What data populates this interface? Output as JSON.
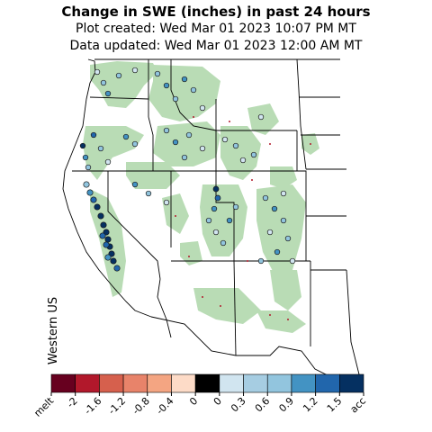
{
  "header": {
    "title": "Change in SWE (inches) in past 24 hours",
    "created": "Plot created: Wed Mar 01 2023 10:07 PM MT",
    "updated": "Data updated: Wed Mar 01 2023 12:00 AM MT"
  },
  "region_label": "Western US",
  "colorbar": {
    "colors": [
      "#67001f",
      "#b2182b",
      "#d6604d",
      "#e8836a",
      "#f4a582",
      "#fddbc7",
      "#000000",
      "#d1e5f0",
      "#a6cde2",
      "#92c5de",
      "#4393c3",
      "#2166ac",
      "#053061"
    ],
    "tick_labels": [
      "melt",
      "-2",
      "-1.6",
      "-1.2",
      "-0.8",
      "-0.4",
      "0",
      "0",
      "0.3",
      "0.6",
      "0.9",
      "1.2",
      "1.5",
      "acc"
    ]
  },
  "colors": {
    "snow_cover": "#b9dcb5",
    "borders": "#000000",
    "marker_outline": "#1a1a1a"
  }
}
